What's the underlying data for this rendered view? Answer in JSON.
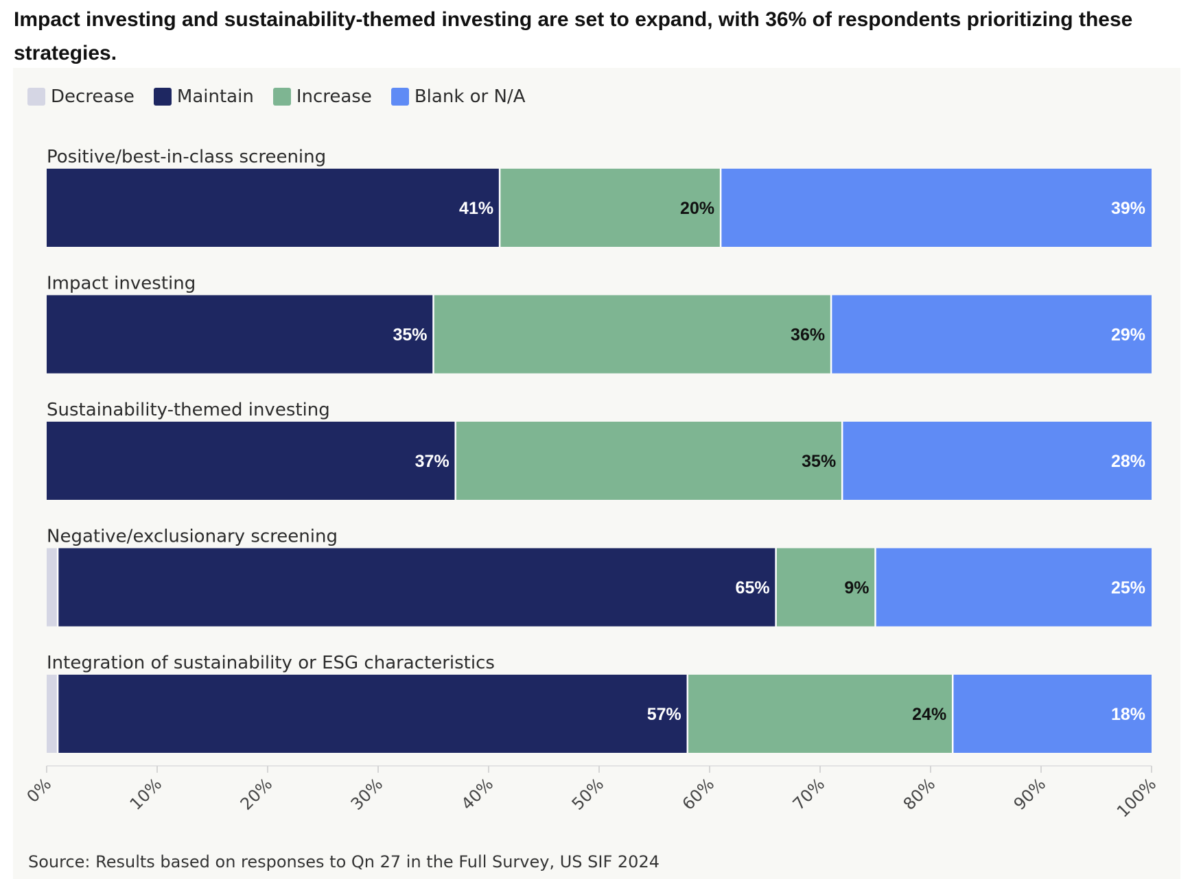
{
  "headline": {
    "prefix": "Impact investing and sustainability-themed investing are set to expand, with ",
    "bold": "36% of respondents",
    "suffix": " prioritizing these strategies."
  },
  "source": "Source: Results based on responses to Qn 27 in the Full Survey, US SIF 2024",
  "colors": {
    "Decrease": "#d5d6e4",
    "Maintain": "#1e2761",
    "Increase": "#7eb592",
    "Blank or N/A": "#5f8bf5",
    "panel": "#f8f8f5"
  },
  "chart_data": {
    "type": "bar",
    "orientation": "horizontal",
    "stacked": true,
    "categories": [
      "Positive/best-in-class screening",
      "Impact investing",
      "Sustainability-themed investing",
      "Negative/exclusionary screening",
      "Integration of sustainability or ESG characteristics"
    ],
    "series": [
      {
        "name": "Decrease",
        "values": [
          0,
          0,
          0,
          1,
          1
        ],
        "labels": [
          "",
          "",
          "",
          "",
          ""
        ]
      },
      {
        "name": "Maintain",
        "values": [
          41,
          35,
          37,
          65,
          57
        ],
        "labels": [
          "41%",
          "35%",
          "37%",
          "65%",
          "57%"
        ]
      },
      {
        "name": "Increase",
        "values": [
          20,
          36,
          35,
          9,
          24
        ],
        "labels": [
          "20%",
          "36%",
          "35%",
          "9%",
          "24%"
        ]
      },
      {
        "name": "Blank or N/A",
        "values": [
          39,
          29,
          28,
          25,
          18
        ],
        "labels": [
          "39%",
          "29%",
          "28%",
          "25%",
          "18%"
        ]
      }
    ],
    "xlim": [
      0,
      100
    ],
    "xticks": [
      "0%",
      "10%",
      "20%",
      "30%",
      "40%",
      "50%",
      "60%",
      "70%",
      "80%",
      "90%",
      "100%"
    ],
    "legend_position": "top-left",
    "grid": false
  }
}
